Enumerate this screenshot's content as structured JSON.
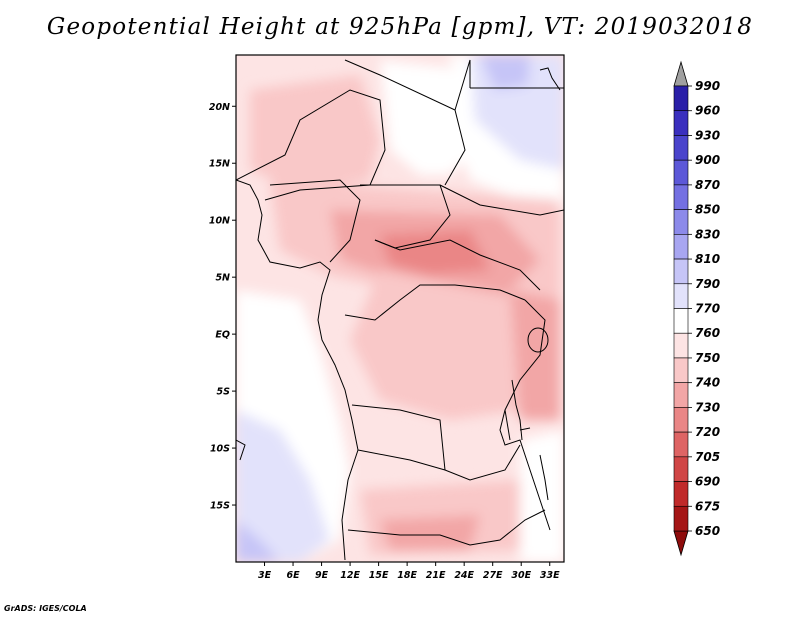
{
  "title": "Geopotential Height at 925hPa [gpm], VT: 2019032018",
  "credit": "GrADS: IGES/COLA",
  "lat_axis": {
    "labels": [
      "20N",
      "15N",
      "10N",
      "5N",
      "EQ",
      "5S",
      "10S",
      "15S"
    ],
    "values": [
      20,
      15,
      10,
      5,
      0,
      -5,
      -10,
      -15
    ],
    "range": [
      -20,
      24.5
    ]
  },
  "lon_axis": {
    "labels": [
      "3E",
      "6E",
      "9E",
      "12E",
      "15E",
      "18E",
      "21E",
      "24E",
      "27E",
      "30E",
      "33E"
    ],
    "values": [
      3,
      6,
      9,
      12,
      15,
      18,
      21,
      24,
      27,
      30,
      33
    ],
    "range": [
      0,
      34.5
    ]
  },
  "colorbar": {
    "levels": [
      "990",
      "960",
      "930",
      "900",
      "870",
      "850",
      "830",
      "810",
      "790",
      "770",
      "760",
      "750",
      "740",
      "730",
      "720",
      "705",
      "690",
      "675",
      "650"
    ],
    "colors": [
      "#1a0f8f",
      "#2a1fa8",
      "#3a2fbe",
      "#4a44cc",
      "#5c58d8",
      "#7470e2",
      "#8c8aea",
      "#a8a6f1",
      "#c6c5f7",
      "#e2e2fb",
      "#ffffff",
      "#fde4e4",
      "#f9c8c8",
      "#f2a6a6",
      "#ea8686",
      "#de6464",
      "#d04646",
      "#c02a2a",
      "#a51616"
    ],
    "top_triangle_color": "#a0a0a0",
    "bottom_triangle_color": "#8e0c0c"
  }
}
